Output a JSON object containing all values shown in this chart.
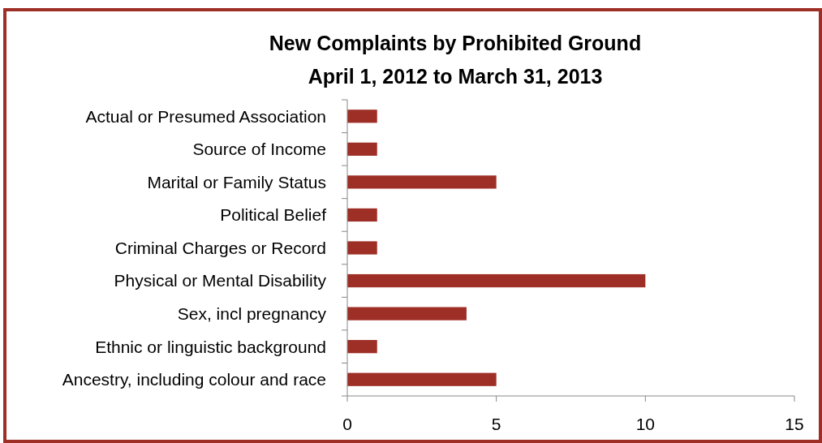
{
  "chart_data": {
    "type": "bar",
    "orientation": "horizontal",
    "title": "New Complaints by Prohibited Ground",
    "subtitle": "April 1, 2012 to March 31, 2013",
    "categories": [
      "Actual or Presumed Association",
      "Source of Income",
      "Marital or Family Status",
      "Political Belief",
      "Criminal Charges or Record",
      "Physical or Mental Disability",
      "Sex, incl pregnancy",
      "Ethnic or linguistic background",
      "Ancestry, including colour and race"
    ],
    "values": [
      1,
      1,
      5,
      1,
      1,
      10,
      4,
      1,
      5
    ],
    "color": "#9e2f26",
    "xlim": [
      0,
      15
    ],
    "xticks": [
      0,
      5,
      10,
      15
    ]
  }
}
